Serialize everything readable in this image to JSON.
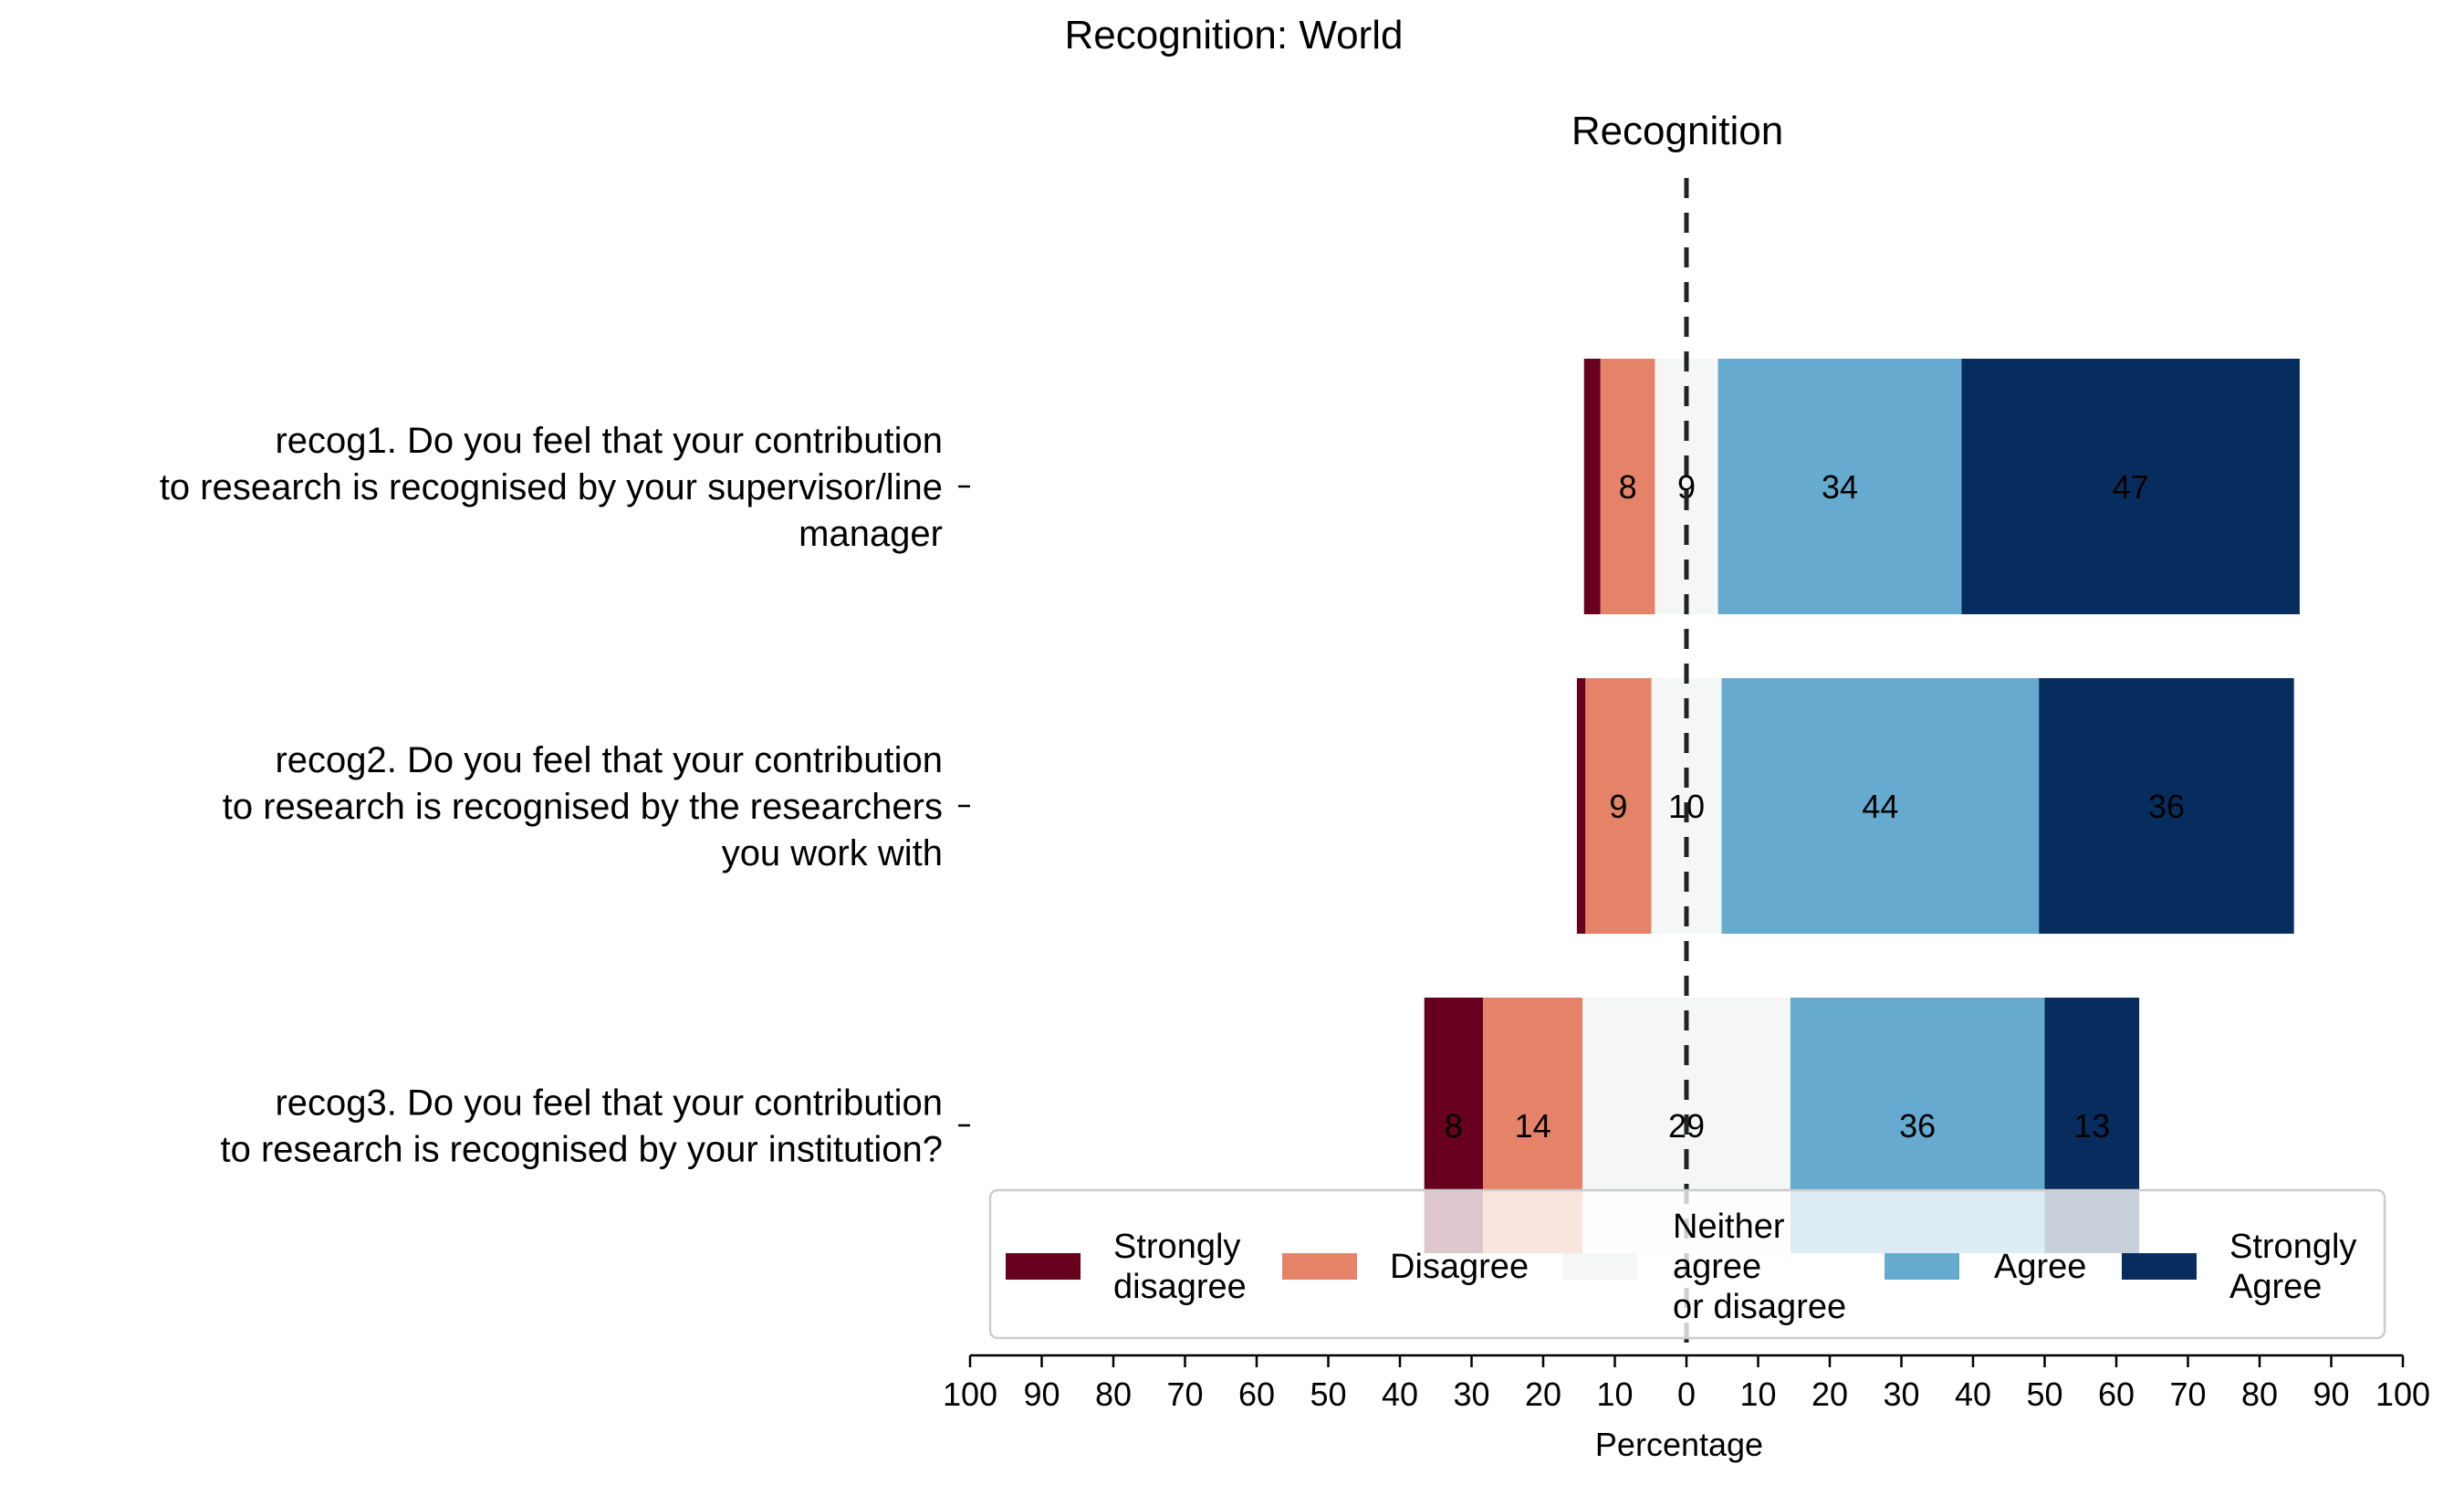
{
  "chart_data": {
    "type": "bar",
    "orientation": "horizontal",
    "stacked": "diverging",
    "title": "Recognition: World",
    "subtitle": "Recognition",
    "xlabel": "Percentage",
    "xlim": [
      -100,
      100
    ],
    "xticks": [
      -100,
      -90,
      -80,
      -70,
      -60,
      -50,
      -40,
      -30,
      -20,
      -10,
      0,
      10,
      20,
      30,
      40,
      50,
      60,
      70,
      80,
      90,
      100
    ],
    "xtick_labels": [
      "100",
      "90",
      "80",
      "70",
      "60",
      "50",
      "40",
      "30",
      "20",
      "10",
      "0",
      "10",
      "20",
      "30",
      "40",
      "50",
      "60",
      "70",
      "80",
      "90",
      "100"
    ],
    "grid": false,
    "legend_placement": "bottom-center-overlapping",
    "categories": [
      [
        "recog1. Do you feel that your contribution",
        "to research is recognised by your supervisor/line",
        "manager"
      ],
      [
        "recog2. Do you feel that your contribution",
        "to research is recognised by the researchers",
        "you work with"
      ],
      [
        "recog3. Do you feel that your contribution",
        "to research is recognised by your institution?"
      ]
    ],
    "series": [
      {
        "name": "Strongly disagree",
        "legend_lines": [
          "Strongly",
          "disagree"
        ],
        "color": "#67001f",
        "values": [
          2.3,
          1.2,
          8.2
        ],
        "labels": [
          "",
          "",
          "8"
        ]
      },
      {
        "name": "Disagree",
        "legend_lines": [
          "Disagree"
        ],
        "color": "#e58368",
        "values": [
          7.6,
          9.2,
          13.9
        ],
        "labels": [
          "8",
          "9",
          "14"
        ]
      },
      {
        "name": "Neither agree or disagree",
        "legend_lines": [
          "Neither",
          "agree",
          "or disagree"
        ],
        "color": "#f5f6f6",
        "values": [
          8.8,
          9.8,
          29.0
        ],
        "labels": [
          "9",
          "10",
          "29"
        ]
      },
      {
        "name": "Agree",
        "legend_lines": [
          "Agree"
        ],
        "color": "#67aacf",
        "values": [
          34.0,
          44.3,
          35.5
        ],
        "labels": [
          "34",
          "44",
          "36"
        ]
      },
      {
        "name": "Strongly Agree",
        "legend_lines": [
          "Strongly",
          "Agree"
        ],
        "color": "#072d5e",
        "values": [
          47.2,
          35.6,
          13.2
        ],
        "labels": [
          "47",
          "36",
          "13"
        ]
      }
    ],
    "neutral_series_index": 2
  }
}
